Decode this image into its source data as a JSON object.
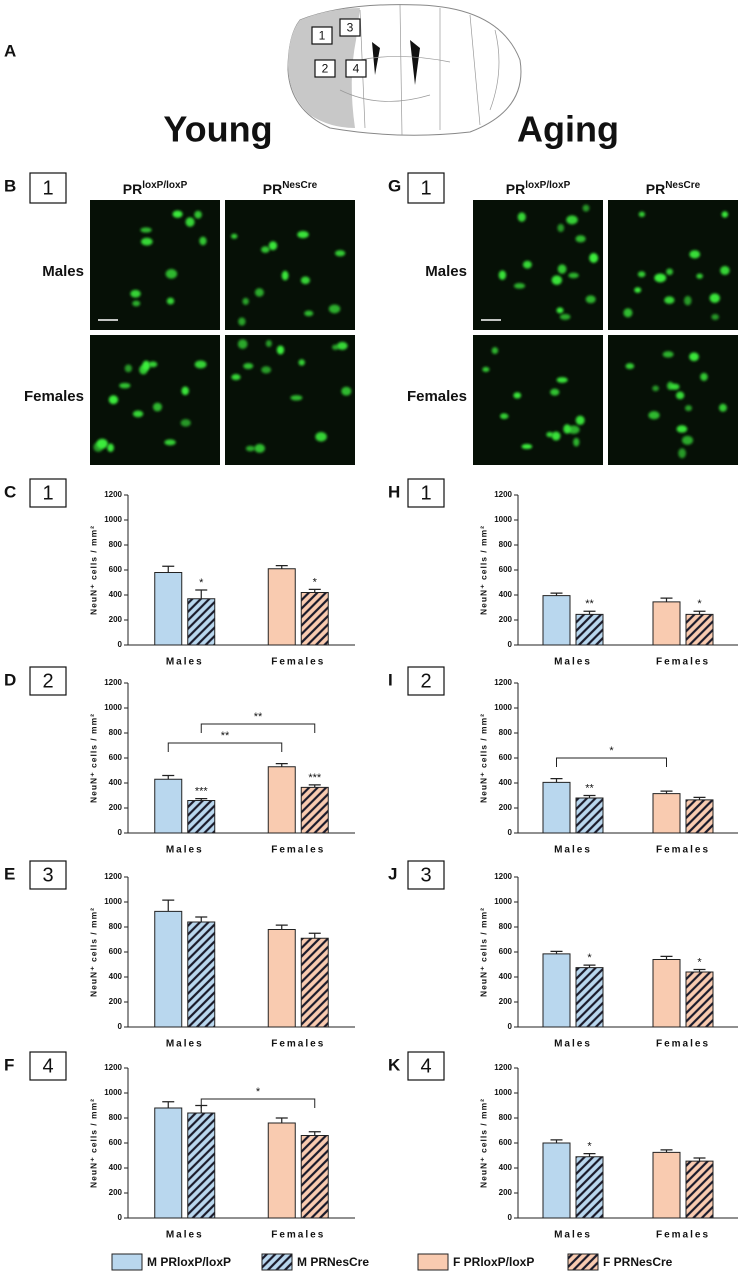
{
  "figure": {
    "panel_a": "A",
    "brain_regions": [
      "1",
      "3",
      "2",
      "4"
    ],
    "young": "Young",
    "aging": "Aging",
    "image_panels": [
      {
        "letter": "B",
        "region": "1"
      },
      {
        "letter": "G",
        "region": "1"
      }
    ],
    "genotypes": [
      {
        "base": "PR",
        "sup": "loxP/loxP"
      },
      {
        "base": "PR",
        "sup": "NesCre"
      }
    ],
    "rows": [
      "Males",
      "Females"
    ]
  },
  "chart_data": [
    {
      "type": "bar",
      "panel": "C",
      "region": "1",
      "ylabel": "NeuN⁺ cells / mm²",
      "categories": [
        "Males",
        "Females"
      ],
      "ylim": [
        0,
        1200
      ],
      "yticks": [
        0,
        200,
        400,
        600,
        800,
        1000,
        1200
      ],
      "series": [
        {
          "name": "M PRloxP/loxP",
          "color": "#b9d7ee",
          "hatch": false,
          "values": [
            580,
            null
          ],
          "errors": [
            50,
            null
          ]
        },
        {
          "name": "M PRNesCre",
          "color": "#b9d7ee",
          "hatch": true,
          "values": [
            370,
            null
          ],
          "errors": [
            70,
            null
          ],
          "significance": [
            "*",
            null
          ]
        },
        {
          "name": "F PRloxP/loxP",
          "color": "#f9cbb0",
          "hatch": false,
          "values": [
            null,
            610
          ],
          "errors": [
            null,
            25
          ]
        },
        {
          "name": "F PRNesCre",
          "color": "#f9cbb0",
          "hatch": true,
          "values": [
            null,
            420
          ],
          "errors": [
            null,
            25
          ],
          "significance": [
            null,
            "*"
          ]
        }
      ]
    },
    {
      "type": "bar",
      "panel": "D",
      "region": "2",
      "ylabel": "NeuN⁺ cells / mm²",
      "categories": [
        "Males",
        "Females"
      ],
      "ylim": [
        0,
        1200
      ],
      "yticks": [
        0,
        200,
        400,
        600,
        800,
        1000,
        1200
      ],
      "comparisons": [
        "**",
        "**"
      ],
      "series": [
        {
          "name": "M PRloxP/loxP",
          "color": "#b9d7ee",
          "hatch": false,
          "values": [
            430,
            null
          ],
          "errors": [
            30,
            null
          ]
        },
        {
          "name": "M PRNesCre",
          "color": "#b9d7ee",
          "hatch": true,
          "values": [
            260,
            null
          ],
          "errors": [
            15,
            null
          ],
          "significance": [
            "***",
            null
          ]
        },
        {
          "name": "F PRloxP/loxP",
          "color": "#f9cbb0",
          "hatch": false,
          "values": [
            null,
            530
          ],
          "errors": [
            null,
            25
          ]
        },
        {
          "name": "F PRNesCre",
          "color": "#f9cbb0",
          "hatch": true,
          "values": [
            null,
            365
          ],
          "errors": [
            null,
            20
          ],
          "significance": [
            null,
            "***"
          ]
        }
      ]
    },
    {
      "type": "bar",
      "panel": "E",
      "region": "3",
      "ylabel": "NeuN⁺ cells / mm²",
      "categories": [
        "Males",
        "Females"
      ],
      "ylim": [
        0,
        1200
      ],
      "yticks": [
        0,
        200,
        400,
        600,
        800,
        1000,
        1200
      ],
      "series": [
        {
          "name": "M PRloxP/loxP",
          "color": "#b9d7ee",
          "hatch": false,
          "values": [
            925,
            null
          ],
          "errors": [
            90,
            null
          ]
        },
        {
          "name": "M PRNesCre",
          "color": "#b9d7ee",
          "hatch": true,
          "values": [
            840,
            null
          ],
          "errors": [
            40,
            null
          ]
        },
        {
          "name": "F PRloxP/loxP",
          "color": "#f9cbb0",
          "hatch": false,
          "values": [
            null,
            780
          ],
          "errors": [
            null,
            35
          ]
        },
        {
          "name": "F PRNesCre",
          "color": "#f9cbb0",
          "hatch": true,
          "values": [
            null,
            710
          ],
          "errors": [
            null,
            40
          ]
        }
      ]
    },
    {
      "type": "bar",
      "panel": "F",
      "region": "4",
      "ylabel": "NeuN⁺ cells / mm²",
      "categories": [
        "Males",
        "Females"
      ],
      "ylim": [
        0,
        1200
      ],
      "yticks": [
        0,
        200,
        400,
        600,
        800,
        1000,
        1200
      ],
      "comparisons": [
        "*"
      ],
      "series": [
        {
          "name": "M PRloxP/loxP",
          "color": "#b9d7ee",
          "hatch": false,
          "values": [
            880,
            null
          ],
          "errors": [
            50,
            null
          ]
        },
        {
          "name": "M PRNesCre",
          "color": "#b9d7ee",
          "hatch": true,
          "values": [
            840,
            null
          ],
          "errors": [
            60,
            null
          ]
        },
        {
          "name": "F PRloxP/loxP",
          "color": "#f9cbb0",
          "hatch": false,
          "values": [
            null,
            760
          ],
          "errors": [
            null,
            40
          ]
        },
        {
          "name": "F PRNesCre",
          "color": "#f9cbb0",
          "hatch": true,
          "values": [
            null,
            660
          ],
          "errors": [
            null,
            30
          ]
        }
      ]
    },
    {
      "type": "bar",
      "panel": "H",
      "region": "1",
      "ylabel": "NeuN⁺ cells / mm²",
      "categories": [
        "Males",
        "Females"
      ],
      "ylim": [
        0,
        1200
      ],
      "yticks": [
        0,
        200,
        400,
        600,
        800,
        1000,
        1200
      ],
      "series": [
        {
          "name": "M PRloxP/loxP",
          "color": "#b9d7ee",
          "hatch": false,
          "values": [
            395,
            null
          ],
          "errors": [
            20,
            null
          ]
        },
        {
          "name": "M PRNesCre",
          "color": "#b9d7ee",
          "hatch": true,
          "values": [
            245,
            null
          ],
          "errors": [
            25,
            null
          ],
          "significance": [
            "**",
            null
          ]
        },
        {
          "name": "F PRloxP/loxP",
          "color": "#f9cbb0",
          "hatch": false,
          "values": [
            null,
            345
          ],
          "errors": [
            null,
            30
          ]
        },
        {
          "name": "F PRNesCre",
          "color": "#f9cbb0",
          "hatch": true,
          "values": [
            null,
            245
          ],
          "errors": [
            null,
            25
          ],
          "significance": [
            null,
            "*"
          ]
        }
      ]
    },
    {
      "type": "bar",
      "panel": "I",
      "region": "2",
      "ylabel": "NeuN⁺ cells / mm²",
      "categories": [
        "Males",
        "Females"
      ],
      "ylim": [
        0,
        1200
      ],
      "yticks": [
        0,
        200,
        400,
        600,
        800,
        1000,
        1200
      ],
      "comparisons": [
        "*"
      ],
      "series": [
        {
          "name": "M PRloxP/loxP",
          "color": "#b9d7ee",
          "hatch": false,
          "values": [
            405,
            null
          ],
          "errors": [
            30,
            null
          ]
        },
        {
          "name": "M PRNesCre",
          "color": "#b9d7ee",
          "hatch": true,
          "values": [
            280,
            null
          ],
          "errors": [
            20,
            null
          ],
          "significance": [
            "**",
            null
          ]
        },
        {
          "name": "F PRloxP/loxP",
          "color": "#f9cbb0",
          "hatch": false,
          "values": [
            null,
            315
          ],
          "errors": [
            null,
            20
          ]
        },
        {
          "name": "F PRNesCre",
          "color": "#f9cbb0",
          "hatch": true,
          "values": [
            null,
            265
          ],
          "errors": [
            null,
            20
          ]
        }
      ]
    },
    {
      "type": "bar",
      "panel": "J",
      "region": "3",
      "ylabel": "NeuN⁺ cells / mm²",
      "categories": [
        "Males",
        "Females"
      ],
      "ylim": [
        0,
        1200
      ],
      "yticks": [
        0,
        200,
        400,
        600,
        800,
        1000,
        1200
      ],
      "series": [
        {
          "name": "M PRloxP/loxP",
          "color": "#b9d7ee",
          "hatch": false,
          "values": [
            585,
            null
          ],
          "errors": [
            20,
            null
          ]
        },
        {
          "name": "M PRNesCre",
          "color": "#b9d7ee",
          "hatch": true,
          "values": [
            475,
            null
          ],
          "errors": [
            20,
            null
          ],
          "significance": [
            "*",
            null
          ]
        },
        {
          "name": "F PRloxP/loxP",
          "color": "#f9cbb0",
          "hatch": false,
          "values": [
            null,
            540
          ],
          "errors": [
            null,
            25
          ]
        },
        {
          "name": "F PRNesCre",
          "color": "#f9cbb0",
          "hatch": true,
          "values": [
            null,
            440
          ],
          "errors": [
            null,
            20
          ],
          "significance": [
            null,
            "*"
          ]
        }
      ]
    },
    {
      "type": "bar",
      "panel": "K",
      "region": "4",
      "ylabel": "NeuN⁺ cells / mm²",
      "categories": [
        "Males",
        "Females"
      ],
      "ylim": [
        0,
        1200
      ],
      "yticks": [
        0,
        200,
        400,
        600,
        800,
        1000,
        1200
      ],
      "series": [
        {
          "name": "M PRloxP/loxP",
          "color": "#b9d7ee",
          "hatch": false,
          "values": [
            600,
            null
          ],
          "errors": [
            25,
            null
          ]
        },
        {
          "name": "M PRNesCre",
          "color": "#b9d7ee",
          "hatch": true,
          "values": [
            490,
            null
          ],
          "errors": [
            25,
            null
          ],
          "significance": [
            "*",
            null
          ]
        },
        {
          "name": "F PRloxP/loxP",
          "color": "#f9cbb0",
          "hatch": false,
          "values": [
            null,
            525
          ],
          "errors": [
            null,
            20
          ]
        },
        {
          "name": "F PRNesCre",
          "color": "#f9cbb0",
          "hatch": true,
          "values": [
            null,
            455
          ],
          "errors": [
            null,
            25
          ]
        }
      ]
    }
  ]
}
